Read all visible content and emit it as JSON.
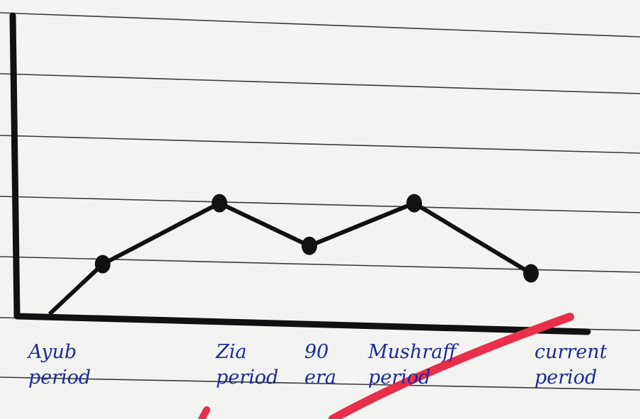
{
  "chart_data": {
    "type": "line",
    "categories": [
      "Ayub period",
      "Zia period",
      "90 era",
      "Mushraff period",
      "current period"
    ],
    "values": [
      1.8,
      3.8,
      2.4,
      3.8,
      1.5
    ],
    "color": "#111111",
    "ylim": [
      0,
      10
    ]
  }
}
